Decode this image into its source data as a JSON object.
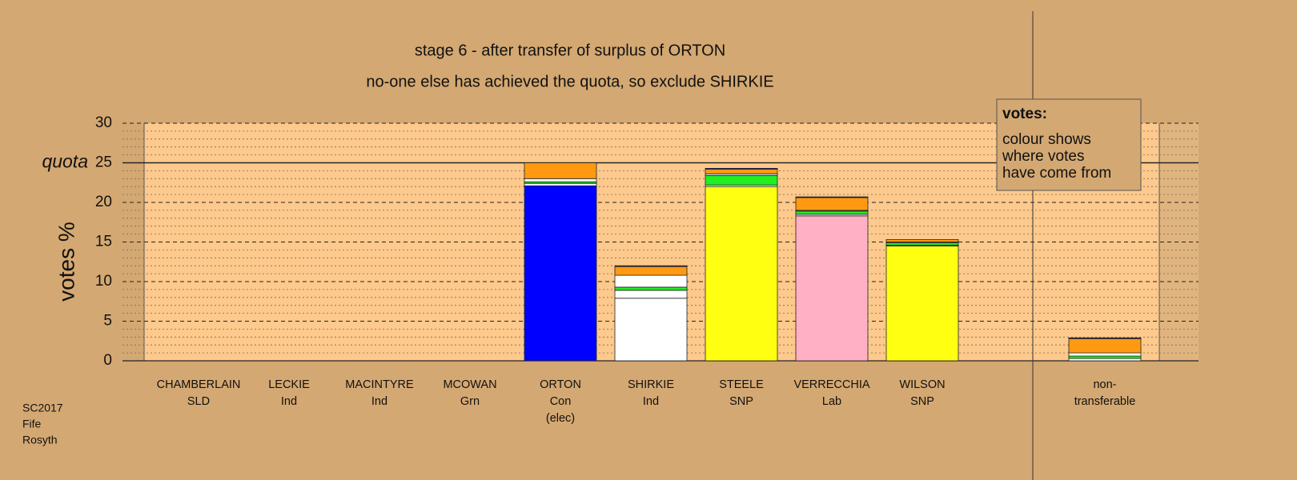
{
  "chart_data": {
    "type": "stacked_bar",
    "title": "stage 6 - after transfer of surplus of ORTON",
    "subtitle": "no-one else has achieved the quota, so exclude SHIRKIE",
    "y_label": "votes %",
    "quota_label": "quota",
    "quota": 25,
    "categories": [
      [
        "CHAMBERLAIN",
        "SLD"
      ],
      [
        "LECKIE",
        "Ind"
      ],
      [
        "MACINTYRE",
        "Ind"
      ],
      [
        "MCOWAN",
        "Grn"
      ],
      [
        "ORTON",
        "Con",
        "(elec)"
      ],
      [
        "SHIRKIE",
        "Ind"
      ],
      [
        "STEELE",
        "SNP"
      ],
      [
        "VERRECCHIA",
        "Lab"
      ],
      [
        "WILSON",
        "SNP"
      ],
      [
        "non-",
        "transferable"
      ]
    ],
    "series": [
      {
        "colors": [
          "#ff9911",
          "#ffffff",
          "#ffffff",
          "#22ee22",
          "#0000ff",
          "#ffffff",
          "#ffff11",
          "#ffb0c4",
          "#ffff11",
          null
        ],
        "values": [
          0,
          0,
          0,
          0,
          22.1,
          7.9,
          22.0,
          18.3,
          14.5,
          0
        ]
      },
      {
        "color": "#ffffff",
        "values": [
          0,
          0,
          0,
          0,
          0.3,
          1.0,
          0.2,
          0.2,
          0.1,
          0.3
        ]
      },
      {
        "color": "#22ee22",
        "values": [
          0,
          0,
          0,
          0,
          0.2,
          0.4,
          1.2,
          0.4,
          0.3,
          0.3
        ]
      },
      {
        "color": "#ffffff",
        "values": [
          0,
          0,
          0,
          0,
          0.4,
          1.5,
          0.2,
          0.1,
          0.1,
          0.4
        ]
      },
      {
        "color": "#ff9911",
        "values": [
          0,
          0,
          0,
          0,
          2.0,
          1.1,
          0.6,
          1.6,
          0.3,
          1.8
        ]
      },
      {
        "color": "#0000ff",
        "values": [
          0,
          0,
          0,
          0,
          0,
          0.1,
          0.1,
          0.1,
          0,
          0.1
        ]
      }
    ],
    "ylim": [
      0,
      30
    ],
    "yticks": [
      0,
      5,
      10,
      15,
      20,
      25,
      30
    ],
    "minor_grid_step": 1,
    "annotation": {
      "title": "votes:",
      "lines": [
        "colour shows",
        "where votes",
        "have come from"
      ]
    },
    "footer": [
      "SC2017",
      "Fife",
      "Rosyth"
    ]
  }
}
